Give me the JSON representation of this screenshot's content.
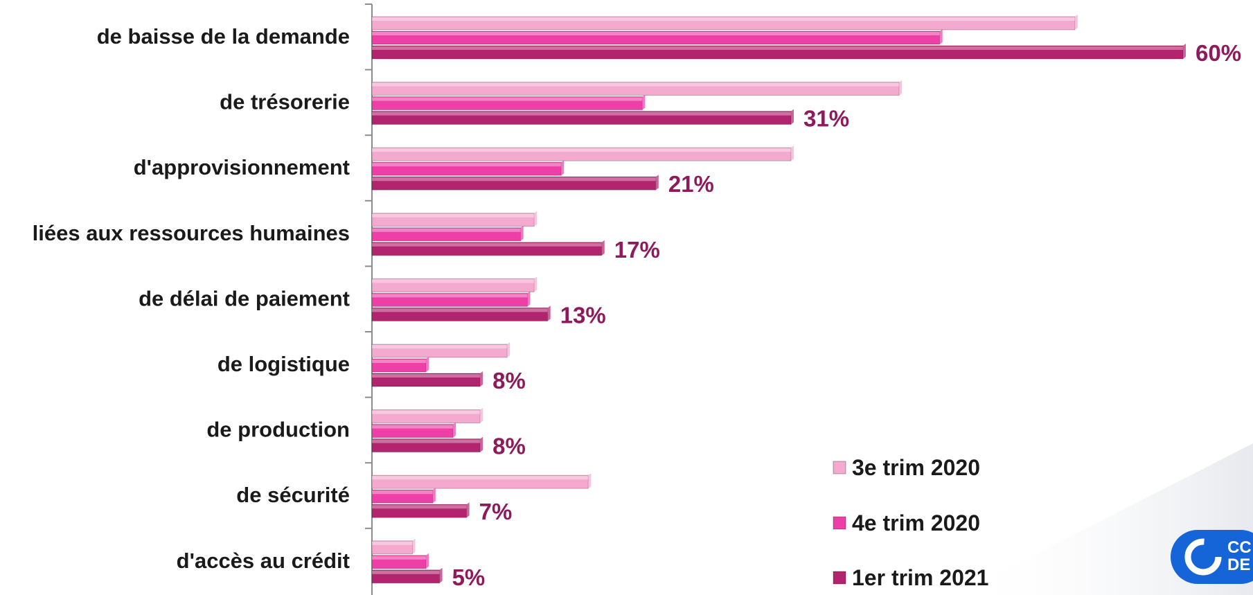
{
  "chart_data": {
    "type": "bar",
    "orientation": "horizontal",
    "categories": [
      "de baisse de la demande",
      "de trésorerie",
      "d'approvisionnement",
      "liées aux ressources humaines",
      "de délai de paiement",
      "de logistique",
      "de production",
      "de sécurité",
      "d'accès au crédit"
    ],
    "series": [
      {
        "name": "3e trim 2020",
        "color": "#f4a9cf",
        "values": [
          52,
          39,
          31,
          12,
          12,
          10,
          8,
          16,
          3
        ]
      },
      {
        "name": "4e trim 2020",
        "color": "#ee3fa6",
        "values": [
          42,
          20,
          14,
          11,
          11.5,
          4,
          6,
          4.5,
          4
        ]
      },
      {
        "name": "1er trim 2021",
        "color": "#b3246f",
        "values": [
          60,
          31,
          21,
          17,
          13,
          8,
          8,
          7,
          5
        ]
      }
    ],
    "data_labels": [
      "60%",
      "31%",
      "21%",
      "17%",
      "13%",
      "8%",
      "8%",
      "7%",
      "5%"
    ],
    "data_label_series": "1er trim 2021",
    "xlim": [
      0,
      60
    ],
    "grid": false,
    "legend_position": "bottom-right"
  },
  "logo": {
    "text_line1": "CC",
    "text_line2": "DE",
    "color": "#1565d8"
  }
}
